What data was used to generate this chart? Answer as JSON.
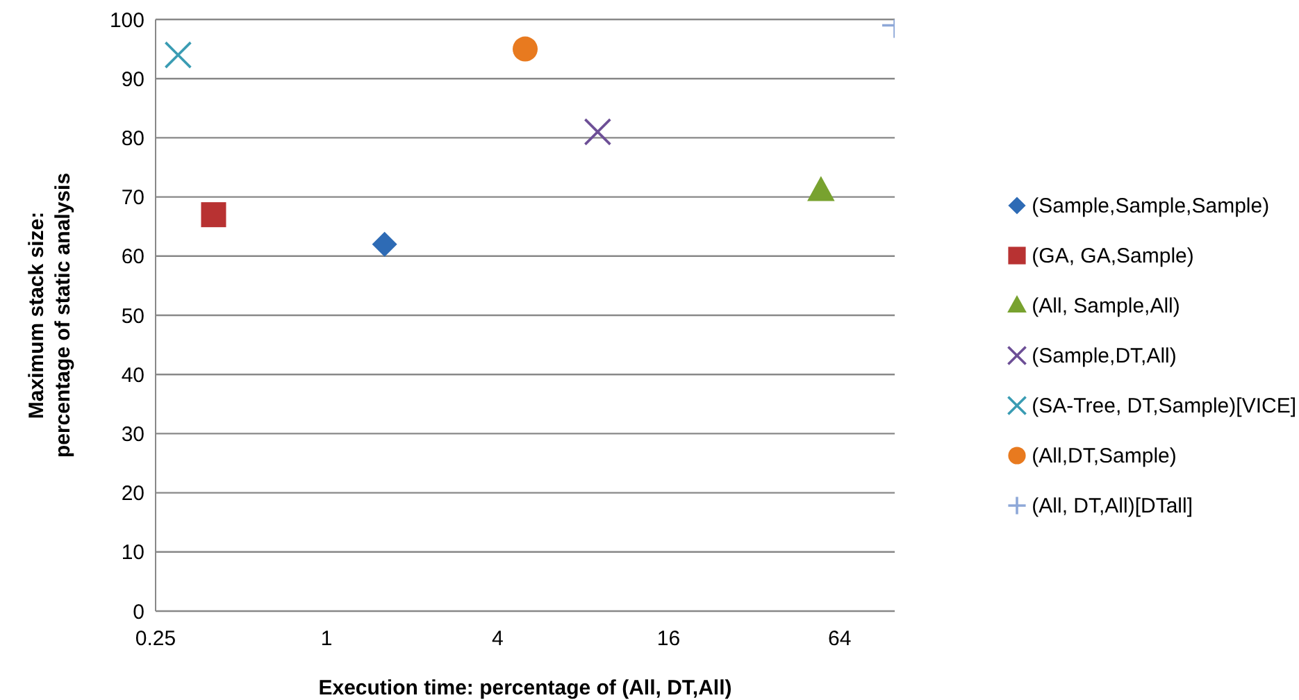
{
  "chart_data": {
    "type": "scatter",
    "xlabel": "Execution time: percentage of (All, DT,All)",
    "ylabel": "Maximum stack size:\npercentage of static analysis",
    "log": "x",
    "xlim": [
      0.25,
      100
    ],
    "xticks": [
      0.25,
      1,
      4,
      16,
      64
    ],
    "ylim": [
      0,
      100
    ],
    "yticks": [
      0,
      10,
      20,
      30,
      40,
      50,
      60,
      70,
      80,
      90,
      100
    ],
    "grid": "y",
    "legend": "right",
    "series": [
      {
        "name": "(Sample,Sample,Sample)",
        "color": "#2e6bb5",
        "marker": "diamond",
        "x": [
          1.6
        ],
        "values": [
          62
        ]
      },
      {
        "name": "(GA, GA,Sample)",
        "color": "#b83232",
        "marker": "square",
        "x": [
          0.4
        ],
        "values": [
          67
        ]
      },
      {
        "name": "(All, Sample,All)",
        "color": "#78a22f",
        "marker": "triangle",
        "x": [
          55
        ],
        "values": [
          71
        ]
      },
      {
        "name": "(Sample,DT,All)",
        "color": "#6d4f96",
        "marker": "cross",
        "x": [
          9
        ],
        "values": [
          81
        ]
      },
      {
        "name": "(SA-Tree, DT,Sample)[VICE]",
        "color": "#3a9cb3",
        "marker": "cross",
        "x": [
          0.3
        ],
        "values": [
          94
        ]
      },
      {
        "name": "(All,DT,Sample)",
        "color": "#e87a1f",
        "marker": "circle",
        "x": [
          5
        ],
        "values": [
          95
        ]
      },
      {
        "name": "(All, DT,All)[DTall]",
        "color": "#8ea8d8",
        "marker": "plus",
        "x": [
          100
        ],
        "values": [
          99
        ]
      }
    ]
  }
}
